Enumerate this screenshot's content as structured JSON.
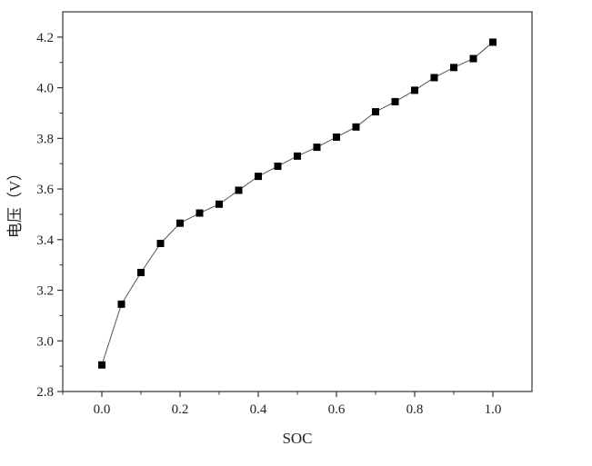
{
  "chart_data": {
    "type": "line",
    "title": "",
    "xlabel": "SOC",
    "ylabel": "电压（V）",
    "xlim": [
      -0.1,
      1.1
    ],
    "ylim": [
      2.8,
      4.3
    ],
    "xticks": [
      0.0,
      0.2,
      0.4,
      0.6,
      0.8,
      1.0
    ],
    "xtick_labels": [
      "0.0",
      "0.2",
      "0.4",
      "0.6",
      "0.8",
      "1.0"
    ],
    "yticks": [
      2.8,
      3.0,
      3.2,
      3.4,
      3.6,
      3.8,
      4.0,
      4.2
    ],
    "ytick_labels": [
      "2.8",
      "3.0",
      "3.2",
      "3.4",
      "3.6",
      "3.8",
      "4.0",
      "4.2"
    ],
    "grid": false,
    "marker": "square",
    "colors": {
      "line": "#555555",
      "marker": "#000000",
      "axis": "#333333"
    },
    "series": [
      {
        "x": [
          0.0,
          0.05,
          0.1,
          0.15,
          0.2,
          0.25,
          0.3,
          0.35,
          0.4,
          0.45,
          0.5,
          0.55,
          0.6,
          0.65,
          0.7,
          0.75,
          0.8,
          0.85,
          0.9,
          0.95,
          1.0
        ],
        "y": [
          2.905,
          3.145,
          3.27,
          3.385,
          3.465,
          3.505,
          3.54,
          3.595,
          3.65,
          3.69,
          3.73,
          3.765,
          3.805,
          3.845,
          3.905,
          3.945,
          3.99,
          4.04,
          4.08,
          4.115,
          4.18
        ]
      }
    ]
  }
}
